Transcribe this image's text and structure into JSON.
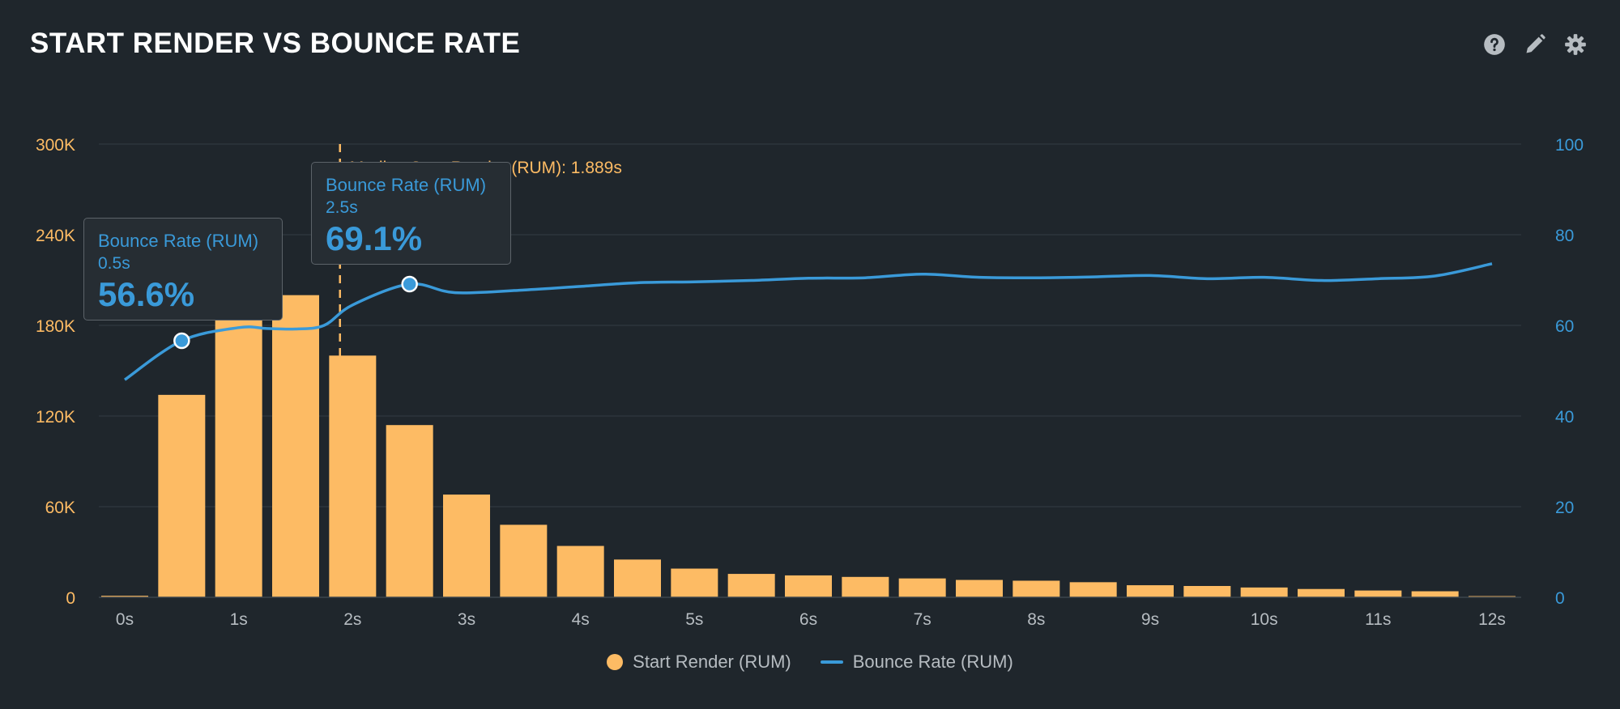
{
  "title": "START RENDER VS BOUNCE RATE",
  "toolbar": {
    "icons": [
      "help-icon",
      "edit-icon",
      "settings-icon"
    ]
  },
  "colors": {
    "bars": "#fdbb64",
    "line": "#3a9ad9",
    "grid": "#2d353c",
    "text": "#b6bcc1"
  },
  "chart_data": {
    "type": "bar",
    "title": "START RENDER VS BOUNCE RATE",
    "x_ticks": [
      "0s",
      "1s",
      "2s",
      "3s",
      "4s",
      "5s",
      "6s",
      "7s",
      "8s",
      "9s",
      "10s",
      "11s",
      "12s"
    ],
    "y_left": {
      "ticks": [
        "0",
        "60K",
        "120K",
        "180K",
        "240K",
        "300K"
      ],
      "lim": [
        0,
        300000
      ]
    },
    "y_right": {
      "ticks": [
        "0",
        "20",
        "40",
        "60",
        "80",
        "100"
      ],
      "lim": [
        0,
        100
      ]
    },
    "grid": true,
    "legend_position": "bottom-center",
    "series": [
      {
        "name": "Start Render (RUM)",
        "type": "bar",
        "x": [
          0,
          0.5,
          1,
          1.5,
          2,
          2.5,
          3,
          3.5,
          4,
          4.5,
          5,
          5.5,
          6,
          6.5,
          7,
          7.5,
          8,
          8.5,
          9,
          9.5,
          10,
          10.5,
          11,
          11.5,
          12
        ],
        "values": [
          1000,
          134000,
          184000,
          200000,
          160000,
          114000,
          68000,
          48000,
          34000,
          25000,
          19000,
          15500,
          14500,
          13500,
          12500,
          11500,
          11000,
          10000,
          8000,
          7500,
          6500,
          5500,
          4500,
          4000,
          800
        ]
      },
      {
        "name": "Bounce Rate (RUM)",
        "type": "line",
        "x": [
          0,
          0.5,
          1,
          1.25,
          1.5,
          1.75,
          2,
          2.5,
          2.9,
          3.5,
          4,
          4.5,
          5,
          5.5,
          6,
          6.5,
          7,
          7.5,
          8,
          8.5,
          9,
          9.5,
          10,
          10.5,
          11,
          11.5,
          12
        ],
        "values": [
          48,
          56.6,
          59.5,
          59.3,
          59.2,
          60,
          64.5,
          69.1,
          67.2,
          67.8,
          68.6,
          69.4,
          69.6,
          69.9,
          70.4,
          70.5,
          71.3,
          70.6,
          70.5,
          70.7,
          71.0,
          70.3,
          70.6,
          69.9,
          70.3,
          70.9,
          73.6
        ]
      }
    ],
    "annotations": [
      {
        "type": "vertical-line",
        "x": 1.889,
        "label": "Median Start Render (RUM): 1.889s"
      }
    ],
    "tooltips": [
      {
        "series": "Bounce Rate (RUM)",
        "x_label": "0.5s",
        "value": "56.6%",
        "x": 0.5,
        "y": 56.6
      },
      {
        "series": "Bounce Rate (RUM)",
        "x_label": "2.5s",
        "value": "69.1%",
        "x": 2.5,
        "y": 69.1
      }
    ]
  },
  "legend": [
    {
      "label": "Start Render (RUM)",
      "shape": "dot"
    },
    {
      "label": "Bounce Rate (RUM)",
      "shape": "line"
    }
  ]
}
